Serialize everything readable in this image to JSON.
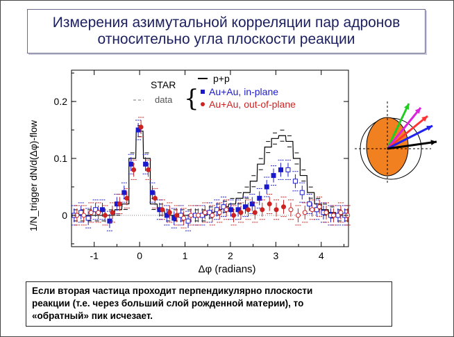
{
  "slide": {
    "title_line1": "Измерения азимутальной корреляции пар адронов",
    "title_line2": "относительно угла плоскости реакции",
    "caption_line1": "Если вторая частица проходит перпендикулярно плоскости",
    "caption_line2": "реакции (т.е. через больший слой рожденной материи), то",
    "caption_line3": "«обратный» пик исчезает."
  },
  "legend": {
    "experiment": "STAR",
    "data_label": "data",
    "entries": [
      "p+p",
      "Au+Au, in-plane",
      "Au+Au, out-of-plane"
    ]
  },
  "chart_data": {
    "type": "scatter",
    "xlabel": "Δφ (radians)",
    "ylabel": "1/N_trigger dN/d(Δφ)-flow",
    "xlim": [
      -1.5,
      4.6
    ],
    "ylim": [
      -0.055,
      0.255
    ],
    "x_ticks": [
      -1,
      0,
      1,
      2,
      3,
      4
    ],
    "y_ticks": [
      0,
      0.1,
      0.2
    ],
    "x_tick_labels": [
      "-1",
      "0",
      "1",
      "2",
      "3",
      "4"
    ],
    "y_tick_labels": [
      "0",
      "0.1",
      "0.2"
    ],
    "grid": false,
    "legend_position": "top-right",
    "reference_line": 0,
    "series": [
      {
        "name": "p+p",
        "style": "histogram",
        "color": "#000000",
        "x": [
          -1.41,
          -1.26,
          -1.1,
          -0.94,
          -0.79,
          -0.63,
          -0.47,
          -0.31,
          -0.16,
          0.0,
          0.16,
          0.31,
          0.47,
          0.63,
          0.79,
          0.94,
          1.1,
          1.26,
          1.41,
          1.57,
          1.73,
          1.88,
          2.04,
          2.2,
          2.36,
          2.51,
          2.67,
          2.83,
          2.98,
          3.14,
          3.3,
          3.46,
          3.61,
          3.77,
          3.93,
          4.08,
          4.24,
          4.4,
          4.55
        ],
        "y": [
          0.0,
          0.0,
          0.0,
          0.0,
          0.0,
          0.0,
          0.01,
          0.02,
          0.1,
          0.148,
          0.1,
          0.02,
          0.01,
          0.0,
          0.0,
          0.0,
          0.0,
          0.0,
          0.0,
          0.005,
          0.01,
          0.015,
          0.02,
          0.03,
          0.04,
          0.06,
          0.09,
          0.12,
          0.135,
          0.14,
          0.13,
          0.1,
          0.07,
          0.04,
          0.02,
          0.01,
          0.005,
          0.0,
          0.0
        ]
      },
      {
        "name": "Au+Au, in-plane",
        "style": "points",
        "color": "#1a1acc",
        "x": [
          -1.41,
          -1.26,
          -1.1,
          -0.94,
          -0.79,
          -0.63,
          -0.47,
          -0.31,
          -0.16,
          0.0,
          0.16,
          0.31,
          0.47,
          0.63,
          0.79,
          0.94,
          1.1,
          1.26,
          1.41,
          1.57,
          1.73,
          1.88,
          2.04,
          2.2,
          2.36,
          2.51,
          2.67,
          2.83,
          2.98,
          3.14,
          3.3,
          3.46,
          3.61,
          3.77,
          3.93,
          4.08,
          4.24,
          4.4,
          4.55
        ],
        "y": [
          0.0,
          0.005,
          -0.005,
          0.01,
          0.01,
          -0.01,
          0.02,
          0.04,
          0.09,
          0.15,
          0.09,
          0.04,
          0.01,
          0.0,
          -0.005,
          0.0,
          -0.01,
          0.0,
          0.0,
          0.005,
          0.01,
          0.015,
          0.01,
          0.01,
          0.015,
          0.02,
          0.03,
          0.05,
          0.07,
          0.08,
          0.08,
          0.06,
          0.04,
          0.02,
          0.01,
          0.005,
          0.0,
          0.0,
          0.0
        ]
      },
      {
        "name": "Au+Au, out-of-plane",
        "style": "points",
        "color": "#cc2222",
        "x": [
          -1.41,
          -1.26,
          -1.1,
          -0.94,
          -0.79,
          -0.63,
          -0.47,
          -0.31,
          -0.16,
          0.0,
          0.16,
          0.31,
          0.47,
          0.63,
          0.79,
          0.94,
          1.1,
          1.26,
          1.41,
          1.57,
          1.73,
          1.88,
          2.04,
          2.2,
          2.36,
          2.51,
          2.67,
          2.83,
          2.98,
          3.14,
          3.3,
          3.46,
          3.61,
          3.77,
          3.93,
          4.08,
          4.24,
          4.4,
          4.55
        ],
        "y": [
          0.0,
          0.0,
          0.005,
          0.005,
          0.0,
          0.005,
          0.02,
          0.03,
          0.08,
          0.155,
          0.08,
          0.03,
          0.01,
          0.005,
          0.0,
          -0.005,
          0.0,
          0.0,
          0.005,
          0.0,
          0.005,
          0.01,
          0.0,
          0.005,
          0.01,
          0.005,
          0.01,
          0.02,
          0.01,
          0.015,
          0.01,
          0.0,
          0.005,
          0.01,
          0.015,
          0.005,
          0.0,
          0.005,
          0.0
        ]
      }
    ]
  },
  "diagram": {
    "arrow_colors": [
      "#22cc22",
      "#dd22dd",
      "#ff3333",
      "#2222ee",
      "#000000"
    ],
    "ellipse_color": "#f08020"
  }
}
